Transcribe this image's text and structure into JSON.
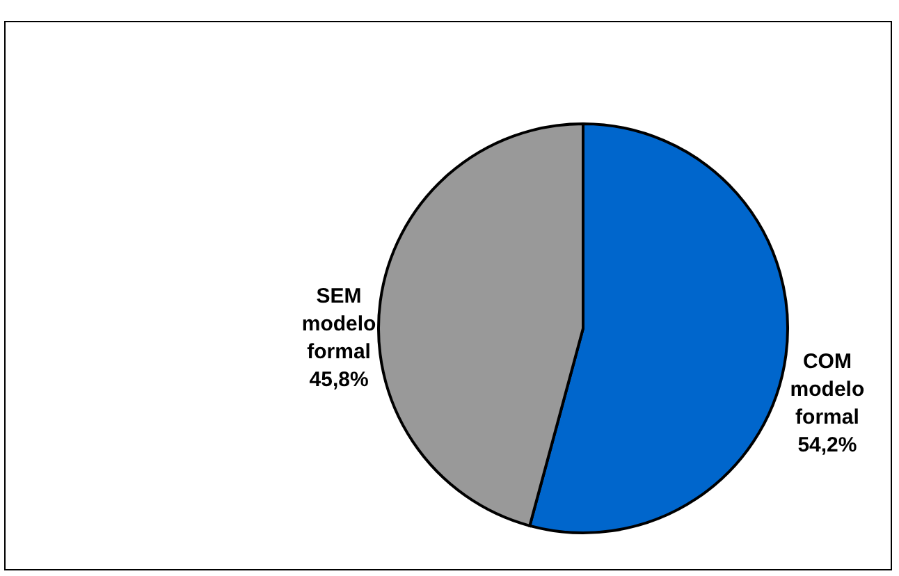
{
  "chart_data": {
    "type": "pie",
    "categories": [
      "COM modelo formal",
      "SEM modelo formal"
    ],
    "values": [
      54.2,
      45.8
    ],
    "colors": [
      "#0066cc",
      "#999999"
    ],
    "value_labels": [
      "54,2%",
      "45,8%"
    ]
  }
}
